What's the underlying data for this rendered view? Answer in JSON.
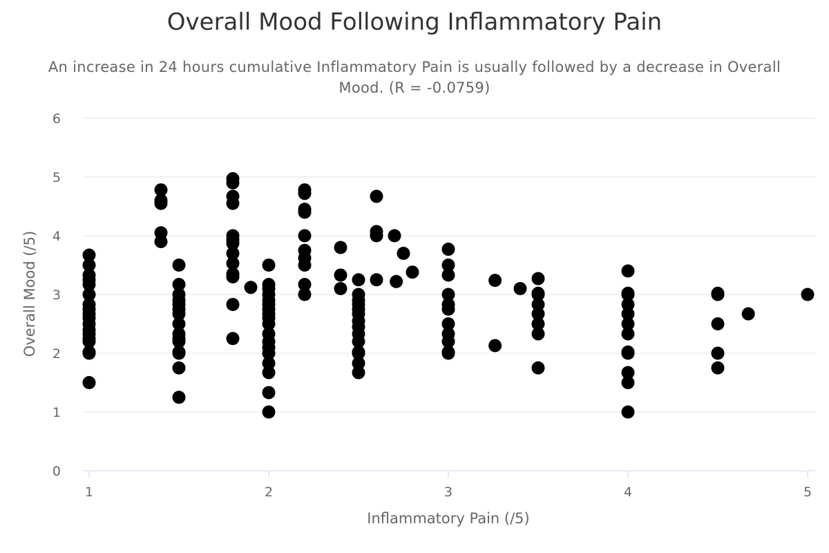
{
  "chart_data": {
    "type": "scatter",
    "title": "Overall Mood Following Inflammatory Pain",
    "subtitle": "An increase in 24 hours cumulative Inflammatory Pain is usually followed by a decrease in Overall Mood. (R = -0.0759)",
    "xlabel": "Inflammatory Pain (/5)",
    "ylabel": "Overall Mood (/5)",
    "xlim": [
      1,
      5
    ],
    "ylim": [
      0,
      6
    ],
    "x_ticks": [
      "1",
      "2",
      "3",
      "4",
      "5"
    ],
    "y_ticks": [
      "0",
      "1",
      "2",
      "3",
      "4",
      "5",
      "6"
    ],
    "grid": "horizontal",
    "marker_color": "#000000",
    "grid_color": "#e6e6e6",
    "axis_color": "#ccd6eb",
    "points": [
      [
        1,
        1.5
      ],
      [
        1,
        2.0
      ],
      [
        1,
        2.02
      ],
      [
        1,
        2.2
      ],
      [
        1,
        2.25
      ],
      [
        1,
        2.33
      ],
      [
        1,
        2.4
      ],
      [
        1,
        2.5
      ],
      [
        1,
        2.6
      ],
      [
        1,
        2.67
      ],
      [
        1,
        2.75
      ],
      [
        1,
        2.83
      ],
      [
        1,
        3.0
      ],
      [
        1,
        3.17
      ],
      [
        1,
        3.25
      ],
      [
        1,
        3.33
      ],
      [
        1,
        3.5
      ],
      [
        1,
        3.67
      ],
      [
        1.4,
        3.9
      ],
      [
        1.4,
        4.05
      ],
      [
        1.4,
        4.55
      ],
      [
        1.4,
        4.6
      ],
      [
        1.4,
        4.78
      ],
      [
        1.5,
        1.25
      ],
      [
        1.5,
        1.75
      ],
      [
        1.5,
        2.0
      ],
      [
        1.5,
        2.02
      ],
      [
        1.5,
        2.2
      ],
      [
        1.5,
        2.25
      ],
      [
        1.5,
        2.33
      ],
      [
        1.5,
        2.5
      ],
      [
        1.5,
        2.67
      ],
      [
        1.5,
        2.75
      ],
      [
        1.5,
        2.83
      ],
      [
        1.5,
        2.9
      ],
      [
        1.5,
        3.0
      ],
      [
        1.5,
        3.17
      ],
      [
        1.5,
        3.5
      ],
      [
        1.8,
        2.25
      ],
      [
        1.8,
        2.83
      ],
      [
        1.8,
        3.3
      ],
      [
        1.8,
        3.35
      ],
      [
        1.8,
        3.53
      ],
      [
        1.8,
        3.7
      ],
      [
        1.8,
        3.87
      ],
      [
        1.8,
        3.93
      ],
      [
        1.8,
        4.0
      ],
      [
        1.8,
        4.55
      ],
      [
        1.8,
        4.67
      ],
      [
        1.8,
        4.9
      ],
      [
        1.8,
        4.97
      ],
      [
        1.9,
        3.12
      ],
      [
        2,
        1.0
      ],
      [
        2,
        1.33
      ],
      [
        2,
        1.67
      ],
      [
        2,
        1.83
      ],
      [
        2,
        2.0
      ],
      [
        2,
        2.1
      ],
      [
        2,
        2.2
      ],
      [
        2,
        2.33
      ],
      [
        2,
        2.5
      ],
      [
        2,
        2.6
      ],
      [
        2,
        2.67
      ],
      [
        2,
        2.75
      ],
      [
        2,
        2.83
      ],
      [
        2,
        2.9
      ],
      [
        2,
        3.0
      ],
      [
        2,
        3.1
      ],
      [
        2,
        3.17
      ],
      [
        2,
        3.5
      ],
      [
        2.2,
        3.0
      ],
      [
        2.2,
        3.17
      ],
      [
        2.2,
        3.5
      ],
      [
        2.2,
        3.62
      ],
      [
        2.2,
        3.75
      ],
      [
        2.2,
        4.0
      ],
      [
        2.2,
        4.4
      ],
      [
        2.2,
        4.45
      ],
      [
        2.2,
        4.72
      ],
      [
        2.2,
        4.78
      ],
      [
        2.4,
        3.1
      ],
      [
        2.4,
        3.33
      ],
      [
        2.4,
        3.8
      ],
      [
        2.5,
        1.67
      ],
      [
        2.5,
        1.83
      ],
      [
        2.5,
        2.0
      ],
      [
        2.5,
        2.02
      ],
      [
        2.5,
        2.2
      ],
      [
        2.5,
        2.33
      ],
      [
        2.5,
        2.45
      ],
      [
        2.5,
        2.55
      ],
      [
        2.5,
        2.67
      ],
      [
        2.5,
        2.75
      ],
      [
        2.5,
        2.83
      ],
      [
        2.5,
        2.9
      ],
      [
        2.5,
        3.0
      ],
      [
        2.5,
        3.25
      ],
      [
        2.6,
        3.25
      ],
      [
        2.6,
        4.0
      ],
      [
        2.6,
        4.07
      ],
      [
        2.6,
        4.67
      ],
      [
        2.7,
        4.0
      ],
      [
        2.71,
        3.22
      ],
      [
        2.75,
        3.7
      ],
      [
        2.8,
        3.38
      ],
      [
        3,
        2.0
      ],
      [
        3,
        2.02
      ],
      [
        3,
        2.2
      ],
      [
        3,
        2.33
      ],
      [
        3,
        2.5
      ],
      [
        3,
        2.75
      ],
      [
        3,
        2.83
      ],
      [
        3,
        3.0
      ],
      [
        3,
        3.33
      ],
      [
        3,
        3.5
      ],
      [
        3,
        3.77
      ],
      [
        3.26,
        2.13
      ],
      [
        3.26,
        3.24
      ],
      [
        3.4,
        3.1
      ],
      [
        3.5,
        1.75
      ],
      [
        3.5,
        2.33
      ],
      [
        3.5,
        2.5
      ],
      [
        3.5,
        2.67
      ],
      [
        3.5,
        2.83
      ],
      [
        3.5,
        3.0
      ],
      [
        3.5,
        3.02
      ],
      [
        3.5,
        3.27
      ],
      [
        4,
        1.0
      ],
      [
        4,
        1.5
      ],
      [
        4,
        1.67
      ],
      [
        4,
        2.0
      ],
      [
        4,
        2.02
      ],
      [
        4,
        2.33
      ],
      [
        4,
        2.5
      ],
      [
        4,
        2.67
      ],
      [
        4,
        2.83
      ],
      [
        4,
        3.0
      ],
      [
        4,
        3.02
      ],
      [
        4,
        3.4
      ],
      [
        4.5,
        1.75
      ],
      [
        4.5,
        2.0
      ],
      [
        4.5,
        2.5
      ],
      [
        4.5,
        3.0
      ],
      [
        4.5,
        3.02
      ],
      [
        4.67,
        2.67
      ],
      [
        5,
        3.0
      ]
    ]
  }
}
